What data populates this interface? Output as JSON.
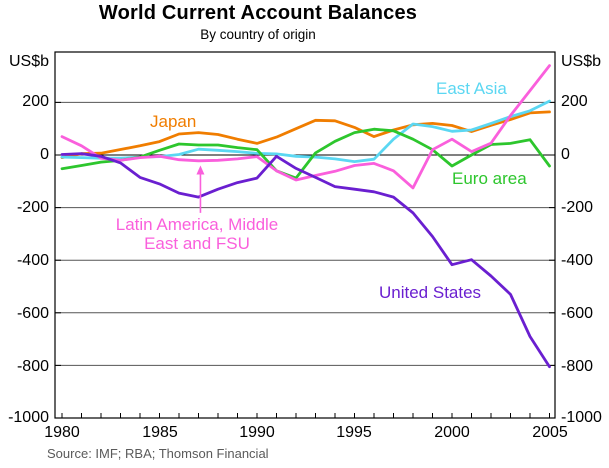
{
  "axis": {
    "unit": "US$b",
    "y_tick_labels": [
      "200",
      "0",
      "-200",
      "-400",
      "-600",
      "-800",
      "-1000"
    ],
    "x_tick_labels": [
      "1980",
      "1985",
      "1990",
      "1995",
      "2000",
      "2005"
    ]
  },
  "labels": {
    "japan": "Japan",
    "east_asia": "East Asia",
    "euro_area": "Euro area",
    "latam_line1": "Latin America, Middle",
    "latam_line2": "East and FSU",
    "united_states": "United States"
  },
  "source": "Source: IMF; RBA; Thomson Financial",
  "chart_data": {
    "type": "line",
    "title": "World Current Account Balances",
    "subtitle": "By country of origin",
    "ylabel": "US$b",
    "ylim": [
      -1000,
      391
    ],
    "yticks": [
      200,
      0,
      -200,
      -400,
      -600,
      -800,
      -1000
    ],
    "xticks": [
      1980,
      1985,
      1990,
      1995,
      2000,
      2005
    ],
    "grid": "horizontal",
    "x": [
      1980,
      1981,
      1982,
      1983,
      1984,
      1985,
      1986,
      1987,
      1988,
      1989,
      1990,
      1991,
      1992,
      1993,
      1994,
      1995,
      1996,
      1997,
      1998,
      1999,
      2000,
      2001,
      2002,
      2003,
      2004,
      2005
    ],
    "series": [
      {
        "name": "Japan",
        "color": "#F07D00",
        "values": [
          -10,
          5,
          7,
          21,
          35,
          51,
          80,
          85,
          78,
          60,
          44,
          68,
          100,
          132,
          130,
          105,
          70,
          95,
          115,
          120,
          112,
          89,
          113,
          135,
          160,
          164
        ]
      },
      {
        "name": "East Asia",
        "color": "#5BD7F2",
        "values": [
          -8,
          -10,
          -12,
          -12,
          -8,
          -6,
          2,
          22,
          18,
          13,
          6,
          4,
          -5,
          -8,
          -15,
          -25,
          -16,
          60,
          118,
          108,
          90,
          95,
          120,
          146,
          168,
          205
        ]
      },
      {
        "name": "Euro area",
        "color": "#2DC62D",
        "values": [
          -52,
          -40,
          -27,
          -20,
          -8,
          18,
          42,
          38,
          38,
          28,
          20,
          -60,
          -88,
          8,
          52,
          85,
          98,
          92,
          60,
          20,
          -42,
          0,
          40,
          44,
          58,
          -42
        ]
      },
      {
        "name": "Latin America, Middle East and FSU",
        "color": "#FA5FDC",
        "values": [
          70,
          35,
          -12,
          -20,
          -10,
          -5,
          -18,
          -22,
          -20,
          -15,
          -6,
          -60,
          -95,
          -78,
          -62,
          -40,
          -32,
          -60,
          -125,
          20,
          60,
          13,
          45,
          150,
          245,
          340
        ]
      },
      {
        "name": "United States",
        "color": "#6A1FD0",
        "values": [
          2,
          5,
          -5,
          -30,
          -85,
          -110,
          -145,
          -160,
          -130,
          -105,
          -88,
          -5,
          -51,
          -85,
          -120,
          -130,
          -140,
          -160,
          -220,
          -310,
          -417,
          -398,
          -460,
          -530,
          -690,
          -805
        ]
      }
    ],
    "annotations": [
      {
        "type": "arrow",
        "x": 1987.1,
        "y_from": -220,
        "y_to": -40,
        "color": "#FA5FDC"
      }
    ]
  }
}
